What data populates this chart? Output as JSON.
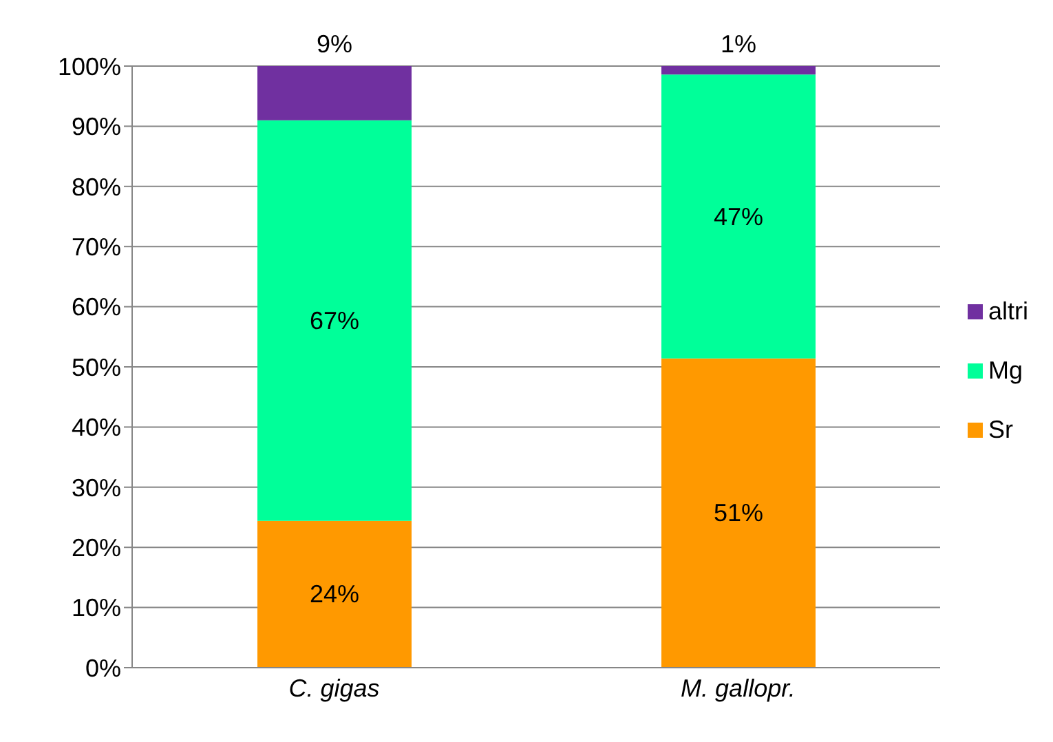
{
  "chart_data": {
    "type": "bar",
    "stacked": true,
    "categories": [
      "C. gigas",
      "M. gallopr."
    ],
    "series": [
      {
        "name": "Sr",
        "color": "#ff9900",
        "values": [
          24.4,
          51.4
        ],
        "value_labels": [
          "24%",
          "51%"
        ]
      },
      {
        "name": "Mg",
        "color": "#00ff99",
        "values": [
          66.6,
          47.2
        ],
        "value_labels": [
          "67%",
          "47%"
        ]
      },
      {
        "name": "altri",
        "color": "#7030a0",
        "values": [
          9,
          1.4
        ],
        "value_labels": [
          "9%",
          "1%"
        ]
      }
    ],
    "ylim": [
      0,
      100
    ],
    "yticks": [
      {
        "value": 0,
        "label": "0%"
      },
      {
        "value": 10,
        "label": "10%"
      },
      {
        "value": 20,
        "label": "20%"
      },
      {
        "value": 30,
        "label": "30%"
      },
      {
        "value": 40,
        "label": "40%"
      },
      {
        "value": 50,
        "label": "50%"
      },
      {
        "value": 60,
        "label": "60%"
      },
      {
        "value": 70,
        "label": "70%"
      },
      {
        "value": 80,
        "label": "80%"
      },
      {
        "value": 90,
        "label": "90%"
      },
      {
        "value": 100,
        "label": "100%"
      }
    ],
    "grid": "y",
    "legend": "right"
  }
}
